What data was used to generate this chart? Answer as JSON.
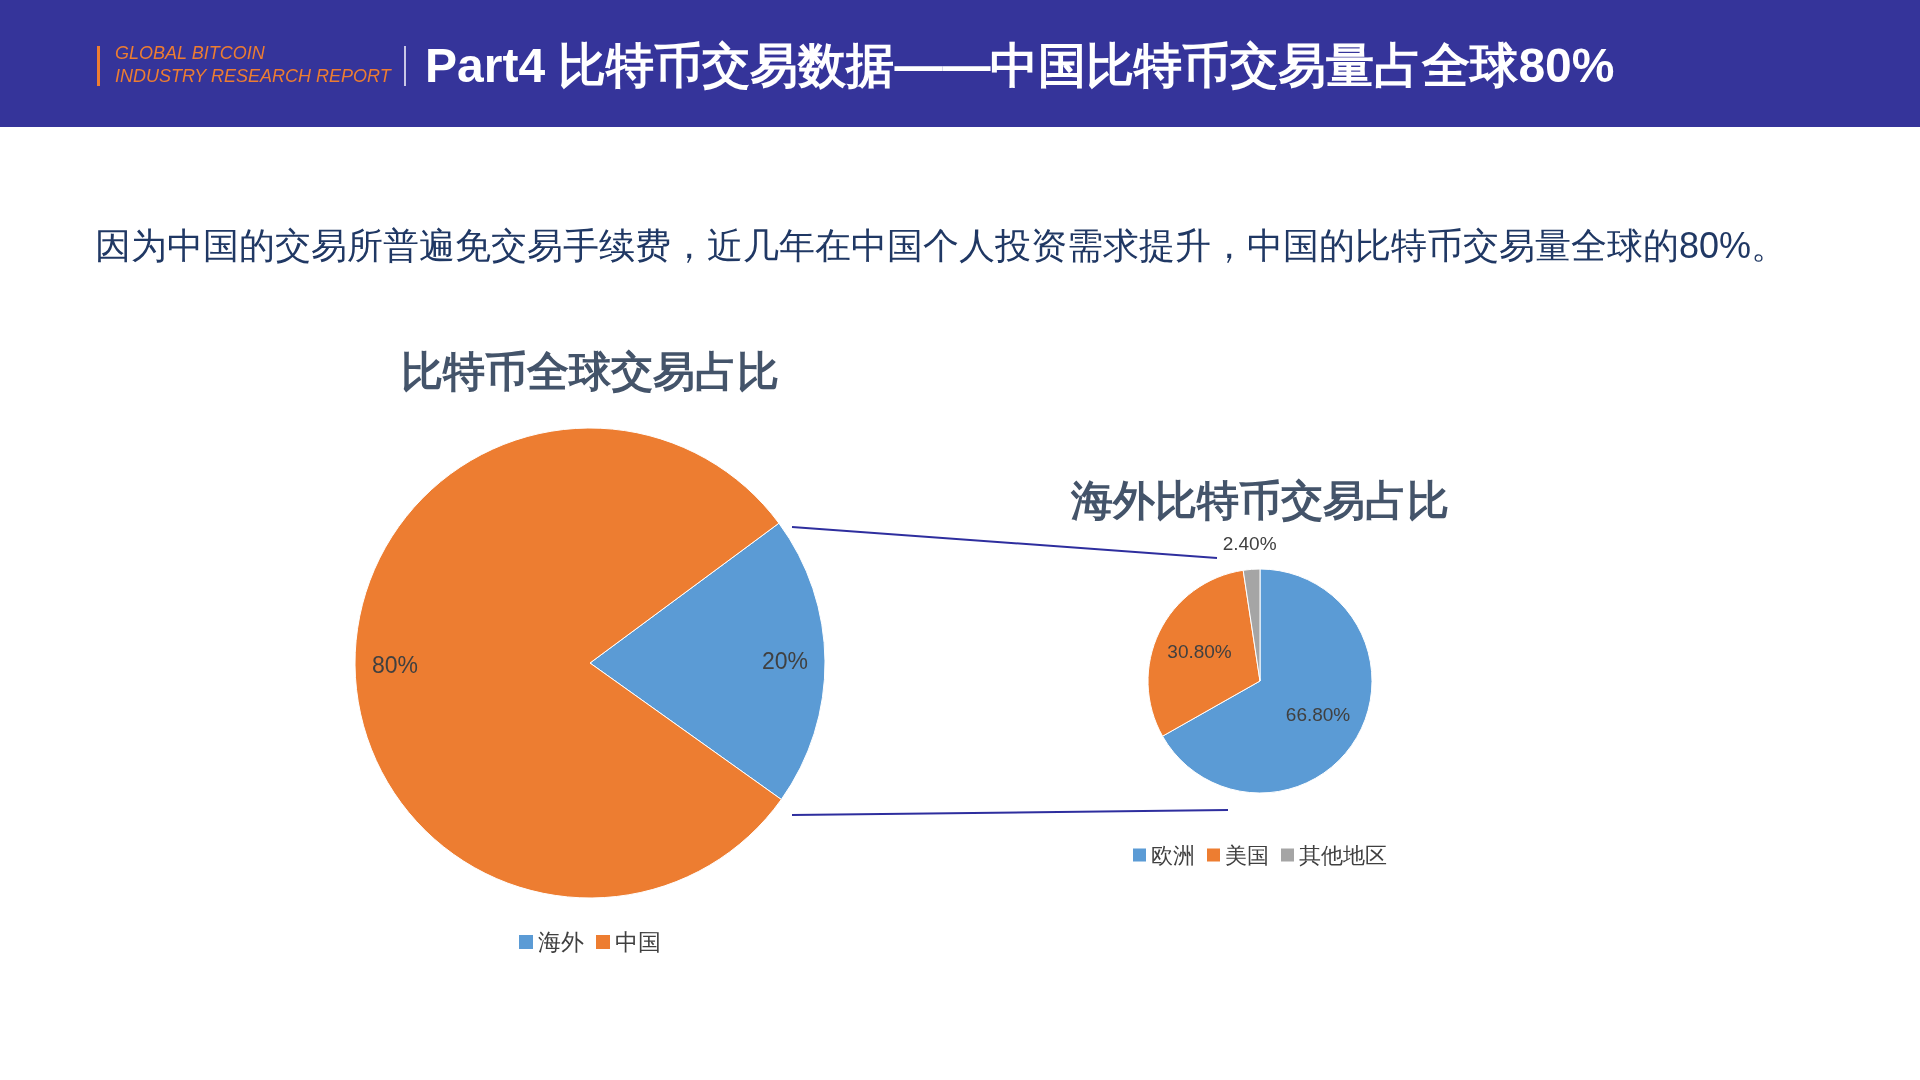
{
  "chart_data": [
    {
      "type": "pie",
      "title": "比特币全球交易占比",
      "categories": [
        "海外",
        "中国"
      ],
      "values": [
        20,
        80
      ],
      "colors": [
        "#5b9bd5",
        "#ed7d31"
      ],
      "value_labels": [
        "20%",
        "80%"
      ],
      "legend": "bottom",
      "annotations": [
        "GLOBAL BITCOIN\nINDUSTRY RESEARCH REPORT",
        "Part4 比特币交易数据——中国比特币交易量占全球80%",
        "因为中国的交易所普遍免交易手续费，近几年在中国个人投资需求提升，中国的比特币交易量全球的80%。"
      ]
    },
    {
      "type": "pie",
      "title": "海外比特币交易占比",
      "categories": [
        "欧洲",
        "美国",
        "其他地区"
      ],
      "values": [
        66.8,
        30.8,
        2.4
      ],
      "colors": [
        "#5b9bd5",
        "#ed7d31",
        "#a5a5a5"
      ],
      "value_labels": [
        "66.80%",
        "30.80%",
        "2.40%"
      ],
      "legend": "bottom"
    }
  ]
}
